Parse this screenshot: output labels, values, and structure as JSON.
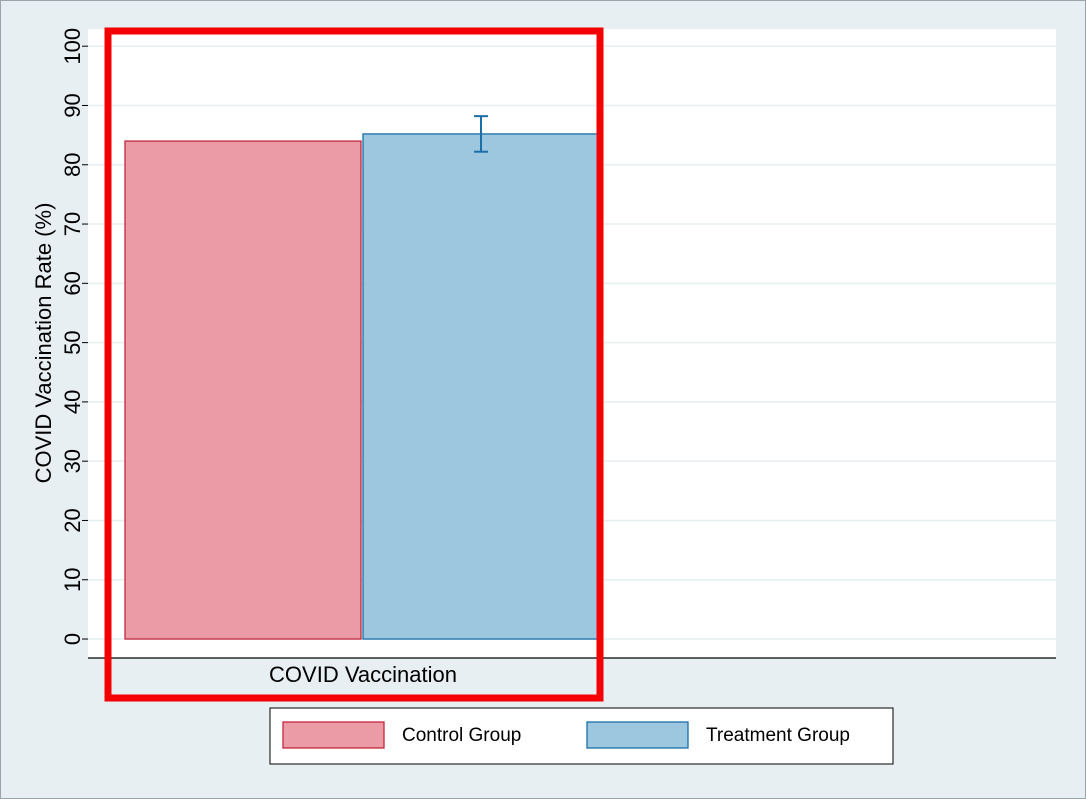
{
  "chart_data": {
    "type": "bar",
    "y_label": "COVID Vaccination Rate (%)",
    "categories": [
      "COVID Vaccination"
    ],
    "series": [
      {
        "name": "Control Group",
        "color": "#ea9ba6",
        "edge": "#c2283e",
        "values": [
          84
        ]
      },
      {
        "name": "Treatment Group",
        "color": "#9dc6df",
        "edge": "#1a6fa8",
        "values": [
          85.2
        ],
        "errors": [
          3.0
        ]
      }
    ],
    "ylim": [
      -3.2,
      102.9
    ],
    "yticks": [
      0,
      10,
      20,
      30,
      40,
      50,
      60,
      70,
      80,
      90,
      100
    ],
    "grid": true
  }
}
